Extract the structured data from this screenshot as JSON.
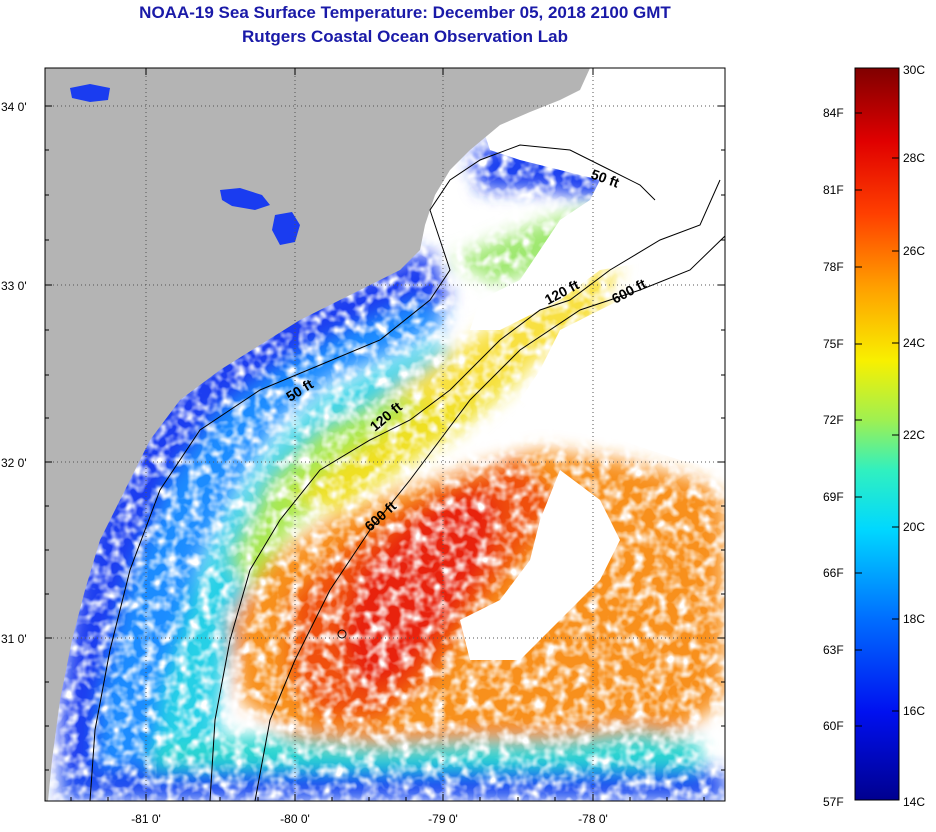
{
  "header": {
    "title": "NOAA-19 Sea Surface Temperature:  December 05, 2018 2100 GMT",
    "subtitle": "Rutgers Coastal Ocean Observation Lab"
  },
  "map": {
    "lat_labels": [
      "34 0'",
      "33 0'",
      "32 0'",
      "31 0'"
    ],
    "lon_labels": [
      "-81 0'",
      "-80 0'",
      "-79 0'",
      "-78 0'"
    ],
    "contours": [
      {
        "id": "c50a",
        "label": "50 ft"
      },
      {
        "id": "c50b",
        "label": "50 ft"
      },
      {
        "id": "c120a",
        "label": "120 ft"
      },
      {
        "id": "c120b",
        "label": "120 ft"
      },
      {
        "id": "c600a",
        "label": "600 ft"
      },
      {
        "id": "c600b",
        "label": "600 ft"
      }
    ],
    "colors": {
      "land": "#b4b4b4",
      "nodata": "#ffffff"
    }
  },
  "colorbar": {
    "fahrenheit": [
      "84F",
      "81F",
      "78F",
      "75F",
      "72F",
      "69F",
      "66F",
      "63F",
      "60F",
      "57F"
    ],
    "celsius": [
      "30C",
      "28C",
      "26C",
      "24C",
      "22C",
      "20C",
      "18C",
      "16C",
      "14C"
    ]
  }
}
